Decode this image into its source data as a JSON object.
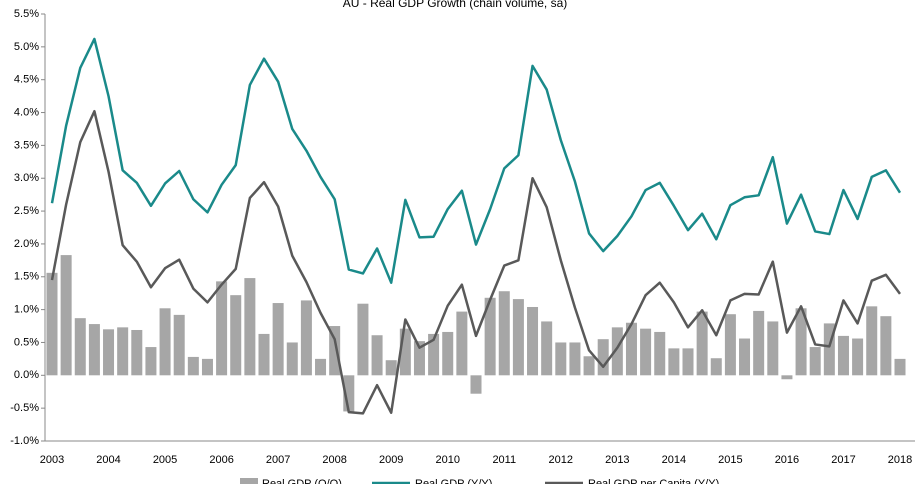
{
  "chart_data": {
    "type": "bar-line",
    "title": "AU - Real GDP Growth (chain volume, sa)",
    "categories": [
      "2003",
      null,
      null,
      null,
      "2004",
      null,
      null,
      null,
      "2005",
      null,
      null,
      null,
      "2006",
      null,
      null,
      null,
      "2007",
      null,
      null,
      null,
      "2008",
      null,
      null,
      null,
      "2009",
      null,
      null,
      null,
      "2010",
      null,
      null,
      null,
      "2011",
      null,
      null,
      null,
      "2012",
      null,
      null,
      null,
      "2013",
      null,
      null,
      null,
      "2014",
      null,
      null,
      null,
      "2015",
      null,
      null,
      null,
      "2016",
      null,
      null,
      null,
      "2017",
      null,
      null,
      null,
      "2018"
    ],
    "series": [
      {
        "name": "Real GDP (Q/Q)",
        "kind": "bar",
        "color": "#a6a6a6",
        "values": [
          1.56,
          1.83,
          0.87,
          0.78,
          0.7,
          0.73,
          0.69,
          0.43,
          1.02,
          0.92,
          0.28,
          0.25,
          1.43,
          1.22,
          1.48,
          0.63,
          1.1,
          0.5,
          1.14,
          0.25,
          0.75,
          -0.55,
          1.09,
          0.61,
          0.23,
          0.71,
          0.52,
          0.63,
          0.66,
          0.97,
          -0.28,
          1.18,
          1.28,
          1.16,
          1.04,
          0.82,
          0.5,
          0.5,
          0.29,
          0.55,
          0.73,
          0.8,
          0.71,
          0.66,
          0.41,
          0.41,
          0.97,
          0.26,
          0.93,
          0.56,
          0.98,
          0.82,
          -0.06,
          1.02,
          0.43,
          0.79,
          0.6,
          0.56,
          1.05,
          0.9,
          0.25
        ]
      },
      {
        "name": "Real GDP (Y/Y)",
        "kind": "line",
        "color": "#1a8a8a",
        "values": [
          2.62,
          3.8,
          4.68,
          5.12,
          4.25,
          3.12,
          2.93,
          2.58,
          2.92,
          3.11,
          2.68,
          2.48,
          2.9,
          3.2,
          4.42,
          4.82,
          4.47,
          3.75,
          3.42,
          3.02,
          2.68,
          1.61,
          1.55,
          1.93,
          1.41,
          2.67,
          2.1,
          2.11,
          2.53,
          2.81,
          1.99,
          2.53,
          3.15,
          3.35,
          4.71,
          4.35,
          3.58,
          2.95,
          2.16,
          1.89,
          2.12,
          2.42,
          2.82,
          2.93,
          2.58,
          2.21,
          2.46,
          2.07,
          2.59,
          2.71,
          2.74,
          3.32,
          2.31,
          2.75,
          2.19,
          2.15,
          2.82,
          2.38,
          3.02,
          3.12,
          2.78
        ]
      },
      {
        "name": "Real GDP per Capita (Y/Y)",
        "kind": "line",
        "color": "#595959",
        "values": [
          1.45,
          2.6,
          3.55,
          4.02,
          3.1,
          1.98,
          1.73,
          1.34,
          1.63,
          1.76,
          1.32,
          1.11,
          1.38,
          1.62,
          2.7,
          2.94,
          2.57,
          1.82,
          1.42,
          0.95,
          0.55,
          -0.56,
          -0.58,
          -0.15,
          -0.57,
          0.85,
          0.42,
          0.54,
          1.06,
          1.38,
          0.6,
          1.15,
          1.67,
          1.75,
          3.0,
          2.56,
          1.75,
          1.03,
          0.38,
          0.13,
          0.42,
          0.78,
          1.22,
          1.41,
          1.11,
          0.73,
          0.99,
          0.61,
          1.14,
          1.24,
          1.23,
          1.73,
          0.65,
          1.05,
          0.47,
          0.44,
          1.14,
          0.79,
          1.44,
          1.53,
          1.24
        ]
      }
    ],
    "ylim": [
      -1,
      5.5
    ],
    "yticks": [
      {
        "value": -1,
        "label": "-1.0%"
      },
      {
        "value": -0.5,
        "label": "-0.5%"
      },
      {
        "value": 0,
        "label": "0.0%"
      },
      {
        "value": 0.5,
        "label": "0.5%"
      },
      {
        "value": 1,
        "label": "1.0%"
      },
      {
        "value": 1.5,
        "label": "1.5%"
      },
      {
        "value": 2,
        "label": "2.0%"
      },
      {
        "value": 2.5,
        "label": "2.5%"
      },
      {
        "value": 3,
        "label": "3.0%"
      },
      {
        "value": 3.5,
        "label": "3.5%"
      },
      {
        "value": 4,
        "label": "4.0%"
      },
      {
        "value": 4.5,
        "label": "4.5%"
      },
      {
        "value": 5,
        "label": "5.0%"
      },
      {
        "value": 5.5,
        "label": "5.5%"
      }
    ],
    "grid": false
  }
}
